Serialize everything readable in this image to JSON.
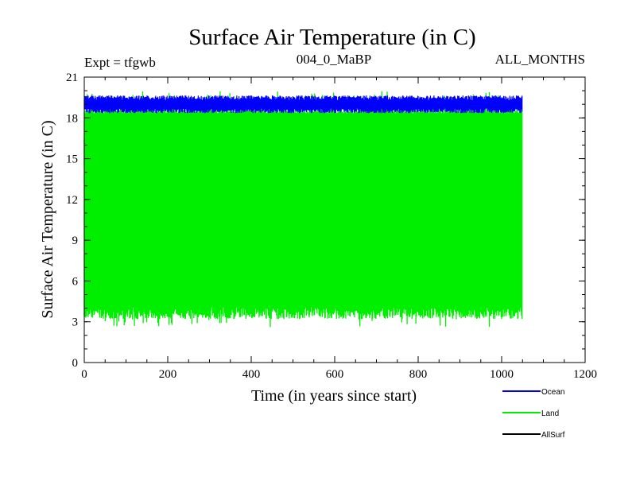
{
  "chart_data": {
    "type": "line",
    "title": "Surface Air Temperature (in C)",
    "subtitle_left": "Expt = tfgwb",
    "subtitle_center": "004_0_MaBP",
    "subtitle_right": "ALL_MONTHS",
    "xlabel": "Time (in years since start)",
    "ylabel": "Surface Air Temperature (in C)",
    "xlim": [
      0,
      1200
    ],
    "ylim": [
      0,
      21
    ],
    "x_ticks": [
      0,
      200,
      400,
      600,
      800,
      1000,
      1200
    ],
    "y_ticks": [
      0,
      3,
      6,
      9,
      12,
      15,
      18,
      21
    ],
    "x_minor_step": 50,
    "y_minor_step": 1,
    "grid": false,
    "legend_position": "bottom-right",
    "series": [
      {
        "name": "Ocean",
        "color": "#0000ff",
        "x_range": [
          0,
          1050
        ],
        "mean": 19.0,
        "min": 18.3,
        "max": 19.7,
        "note": "monthly values, dense oscillation"
      },
      {
        "name": "Land",
        "color": "#00ee00",
        "x_range": [
          0,
          1050
        ],
        "mean": 11.5,
        "min": 2.8,
        "max": 20.2,
        "note": "monthly values, seasonal cycle ~3 to ~19"
      },
      {
        "name": "AllSurf",
        "color": "#000000",
        "x_range": [
          0,
          1050
        ],
        "mean": 15.5,
        "min": 14.2,
        "max": 16.6,
        "note": "mostly hidden behind Land"
      }
    ]
  }
}
